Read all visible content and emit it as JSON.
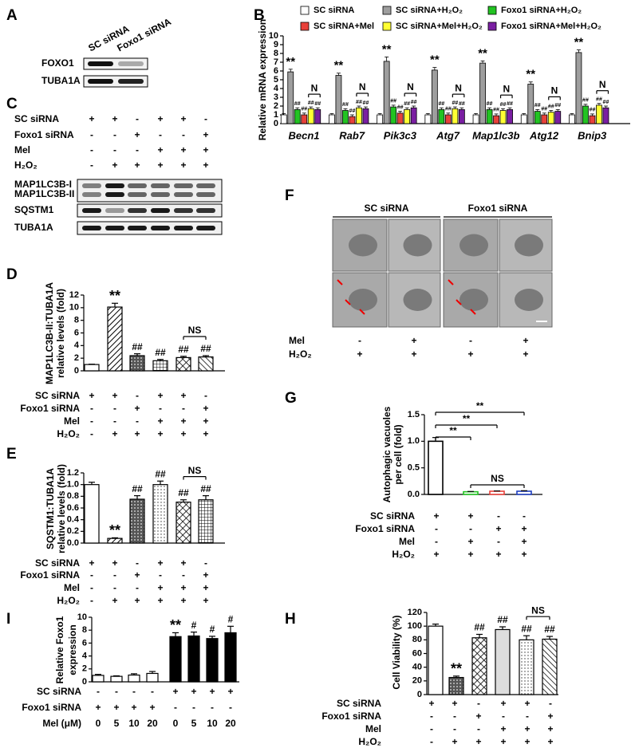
{
  "figure": {
    "A": {
      "panel": "A",
      "lanes": [
        "SC siRNA",
        "Foxo1 siRNA"
      ],
      "rows": [
        "FOXO1",
        "TUBA1A"
      ]
    },
    "C": {
      "panel": "C",
      "conditions": [
        {
          "label": "SC siRNA",
          "signs": [
            "+",
            "+",
            "-",
            "+",
            "+",
            "-"
          ]
        },
        {
          "label": "Foxo1 siRNA",
          "signs": [
            "-",
            "-",
            "+",
            "-",
            "-",
            "+"
          ]
        },
        {
          "label": "Mel",
          "signs": [
            "-",
            "-",
            "-",
            "+",
            "+",
            "+"
          ]
        },
        {
          "label": "H₂O₂",
          "signs": [
            "-",
            "+",
            "+",
            "+",
            "+",
            "+"
          ]
        }
      ],
      "rows": [
        "MAP1LC3B-I",
        "MAP1LC3B-II",
        "SQSTM1",
        "TUBA1A"
      ]
    },
    "F": {
      "panel": "F",
      "groups": [
        "SC siRNA",
        "Foxo1 siRNA"
      ],
      "conditions": [
        {
          "label": "Mel",
          "signs": [
            "-",
            "+",
            "-",
            "+"
          ]
        },
        {
          "label": "H₂O₂",
          "signs": [
            "+",
            "+",
            "+",
            "+"
          ]
        }
      ]
    }
  },
  "chart_data": [
    {
      "panel": "B",
      "type": "grouped_bar",
      "ylabel": [
        "Relative mRNA expression"
      ],
      "categories": [
        "Becn1",
        "Rab7",
        "Pik3c3",
        "Atg7",
        "Map1lc3b",
        "Atg12",
        "Bnip3"
      ],
      "ylim": [
        0,
        10
      ],
      "yticks": [
        0,
        1,
        2,
        3,
        4,
        5,
        6,
        7,
        8,
        9,
        10
      ],
      "series": [
        {
          "name": "SC siRNA",
          "color": "#ffffff",
          "values": [
            1.0,
            1.0,
            1.0,
            1.0,
            1.0,
            1.0,
            1.0
          ],
          "errors": [
            0.15,
            0.15,
            0.15,
            0.15,
            0.15,
            0.15,
            0.15
          ],
          "sig": [
            null,
            null,
            null,
            null,
            null,
            null,
            null
          ]
        },
        {
          "name": "SC siRNA+H₂O₂",
          "color": "#9e9e9e",
          "values": [
            5.9,
            5.5,
            7.1,
            6.1,
            6.9,
            4.5,
            8.1
          ],
          "errors": [
            0.3,
            0.25,
            0.5,
            0.3,
            0.25,
            0.25,
            0.3
          ],
          "sig": [
            "**",
            "**",
            "**",
            "**",
            "**",
            "**",
            "**"
          ]
        },
        {
          "name": "Foxo1 siRNA+H₂O₂",
          "color": "#22c322",
          "values": [
            1.6,
            1.5,
            1.9,
            1.6,
            1.6,
            1.4,
            2.0
          ],
          "errors": [
            0.2,
            0.2,
            0.2,
            0.2,
            0.2,
            0.2,
            0.2
          ],
          "sig": [
            "##",
            "##",
            "##",
            "##",
            "##",
            "##",
            "##"
          ]
        },
        {
          "name": "SC siRNA+Mel",
          "color": "#e8413a",
          "values": [
            1.0,
            0.8,
            1.2,
            1.0,
            0.9,
            1.0,
            0.9
          ],
          "errors": [
            0.2,
            0.2,
            0.2,
            0.2,
            0.2,
            0.2,
            0.2
          ],
          "sig": [
            "##",
            "##",
            "##",
            "##",
            "##",
            "##",
            "##"
          ]
        },
        {
          "name": "SC siRNA+Mel+H₂O₂",
          "color": "#ffff33",
          "values": [
            1.7,
            1.8,
            1.6,
            1.7,
            1.5,
            1.3,
            2.1
          ],
          "errors": [
            0.2,
            0.2,
            0.2,
            0.2,
            0.2,
            0.2,
            0.2
          ],
          "sig": [
            "##",
            "##",
            "##",
            "##",
            "##",
            "##",
            "##"
          ]
        },
        {
          "name": "Foxo1 siRNA+Mel+H₂O₂",
          "color": "#7a1fa2",
          "values": [
            1.6,
            1.7,
            1.8,
            1.6,
            1.6,
            1.4,
            1.8
          ],
          "errors": [
            0.2,
            0.2,
            0.2,
            0.2,
            0.2,
            0.2,
            0.2
          ],
          "sig": [
            "##",
            "##",
            "##",
            "##",
            "##",
            "##",
            "##"
          ]
        }
      ],
      "bracket_series": [
        4,
        5
      ],
      "bracket_labels": [
        "N",
        "N",
        "N",
        "N",
        "N",
        "N",
        "N"
      ]
    },
    {
      "panel": "D",
      "type": "bar",
      "ylabel": [
        "MAP1LC3B-II:TUBA1A",
        "relative levels (fold)"
      ],
      "values": [
        1.0,
        10.1,
        2.4,
        1.6,
        2.1,
        2.2
      ],
      "errors": [
        0.05,
        0.6,
        0.3,
        0.2,
        0.2,
        0.2
      ],
      "sig": [
        null,
        "**",
        "##",
        "##",
        "##",
        "##"
      ],
      "ylim": [
        0,
        12
      ],
      "yticks": [
        0,
        2,
        4,
        6,
        8,
        10,
        12
      ],
      "brackets": [
        {
          "bars": [
            4,
            5
          ],
          "label": "NS"
        }
      ],
      "conditions": [
        {
          "label": "SC siRNA",
          "signs": [
            "+",
            "+",
            "-",
            "+",
            "+",
            "-"
          ]
        },
        {
          "label": "Foxo1 siRNA",
          "signs": [
            "-",
            "-",
            "+",
            "-",
            "-",
            "+"
          ]
        },
        {
          "label": "Mel",
          "signs": [
            "-",
            "-",
            "-",
            "+",
            "+",
            "+"
          ]
        },
        {
          "label": "H₂O₂",
          "signs": [
            "-",
            "+",
            "+",
            "+",
            "+",
            "+"
          ]
        }
      ]
    },
    {
      "panel": "E",
      "type": "bar",
      "ylabel": [
        "SQSTM1:TUBA1A",
        "relative levels (fold)"
      ],
      "values": [
        1.0,
        0.08,
        0.75,
        1.0,
        0.7,
        0.74
      ],
      "errors": [
        0.04,
        0.01,
        0.06,
        0.06,
        0.04,
        0.07
      ],
      "sig": [
        null,
        "**",
        "##",
        "##",
        "##",
        "##"
      ],
      "ylim": [
        0,
        1.2
      ],
      "yticks": [
        {
          "value": 0,
          "label": "0.0"
        },
        {
          "value": 0.2,
          "label": "0.2"
        },
        {
          "value": 0.4,
          "label": "0.4"
        },
        {
          "value": 0.6,
          "label": "0.6"
        },
        {
          "value": 0.8,
          "label": "0.8"
        },
        {
          "value": 1,
          "label": "1.0"
        },
        {
          "value": 1.2,
          "label": "1.2"
        }
      ],
      "brackets": [
        {
          "bars": [
            4,
            5
          ],
          "label": "NS"
        }
      ],
      "conditions": [
        {
          "label": "SC siRNA",
          "signs": [
            "+",
            "+",
            "-",
            "+",
            "+",
            "-"
          ]
        },
        {
          "label": "Foxo1 siRNA",
          "signs": [
            "-",
            "-",
            "+",
            "-",
            "-",
            "+"
          ]
        },
        {
          "label": "Mel",
          "signs": [
            "-",
            "-",
            "-",
            "+",
            "+",
            "+"
          ]
        },
        {
          "label": "H₂O₂",
          "signs": [
            "-",
            "+",
            "+",
            "+",
            "+",
            "+"
          ]
        }
      ]
    },
    {
      "panel": "G",
      "type": "bar",
      "ylabel": [
        "Autophagic vacuoles",
        "per cell (fold)"
      ],
      "values": [
        1.0,
        0.05,
        0.06,
        0.06
      ],
      "errors": [
        0.07,
        0.005,
        0.005,
        0.01
      ],
      "colors": [
        "#000000",
        "#22c322",
        "#e8413a",
        "#1f3fbf"
      ],
      "ylim": [
        0,
        1.5
      ],
      "yticks": [
        {
          "value": 0,
          "label": "0.0"
        },
        {
          "value": 0.5,
          "label": "0.5"
        },
        {
          "value": 1,
          "label": "1.0"
        },
        {
          "value": 1.5,
          "label": "1.5"
        }
      ],
      "brackets": [
        {
          "bars": [
            0,
            1
          ],
          "label": "**"
        },
        {
          "bars": [
            0,
            2
          ],
          "label": "**"
        },
        {
          "bars": [
            0,
            3
          ],
          "label": "**"
        },
        {
          "bars": [
            1,
            3
          ],
          "label": "NS"
        }
      ],
      "conditions": [
        {
          "label": "SC siRNA",
          "signs": [
            "+",
            "+",
            "-",
            "-"
          ]
        },
        {
          "label": "Foxo1 siRNA",
          "signs": [
            "-",
            "-",
            "+",
            "+"
          ]
        },
        {
          "label": "Mel",
          "signs": [
            "-",
            "+",
            "-",
            "+"
          ]
        },
        {
          "label": "H₂O₂",
          "signs": [
            "+",
            "+",
            "+",
            "+"
          ]
        }
      ]
    },
    {
      "panel": "H",
      "type": "bar",
      "ylabel": [
        "Cell Viability (%)"
      ],
      "values": [
        100,
        25,
        83,
        95,
        80,
        81
      ],
      "errors": [
        3,
        2,
        5,
        4,
        6,
        4
      ],
      "sig": [
        null,
        "**",
        "##",
        "##",
        "##",
        "##"
      ],
      "ylim": [
        0,
        120
      ],
      "yticks": [
        0,
        20,
        40,
        60,
        80,
        100,
        120
      ],
      "brackets": [
        {
          "bars": [
            4,
            5
          ],
          "label": "NS"
        }
      ],
      "conditions": [
        {
          "label": "SC siRNA",
          "signs": [
            "+",
            "+",
            "-",
            "+",
            "+",
            "-"
          ]
        },
        {
          "label": "Foxo1 siRNA",
          "signs": [
            "-",
            "-",
            "+",
            "-",
            "-",
            "+"
          ]
        },
        {
          "label": "Mel",
          "signs": [
            "-",
            "-",
            "-",
            "+",
            "+",
            "+"
          ]
        },
        {
          "label": "H₂O₂",
          "signs": [
            "-",
            "+",
            "+",
            "+",
            "+",
            "+"
          ]
        }
      ]
    },
    {
      "panel": "I",
      "type": "bar",
      "ylabel": [
        "Relative Foxo1",
        "expression"
      ],
      "values": [
        1.0,
        0.85,
        1.05,
        1.3,
        7.0,
        7.1,
        6.7,
        7.6
      ],
      "errors": [
        0.15,
        0.08,
        0.2,
        0.3,
        0.6,
        0.6,
        0.35,
        1.0
      ],
      "sig": [
        null,
        null,
        null,
        null,
        "**",
        "#",
        "#",
        "#"
      ],
      "ylim": [
        0,
        10
      ],
      "yticks": [
        0,
        2,
        4,
        6,
        8,
        10
      ],
      "conditions": [
        {
          "label": "SC siRNA",
          "signs": [
            "-",
            "-",
            "-",
            "-",
            "+",
            "+",
            "+",
            "+"
          ]
        },
        {
          "label": "Foxo1 siRNA",
          "signs": [
            "+",
            "+",
            "+",
            "+",
            "-",
            "-",
            "-",
            "-"
          ]
        },
        {
          "label": "Mel (μM)",
          "signs": [
            0,
            5,
            10,
            20,
            0,
            5,
            10,
            20
          ]
        }
      ]
    }
  ]
}
